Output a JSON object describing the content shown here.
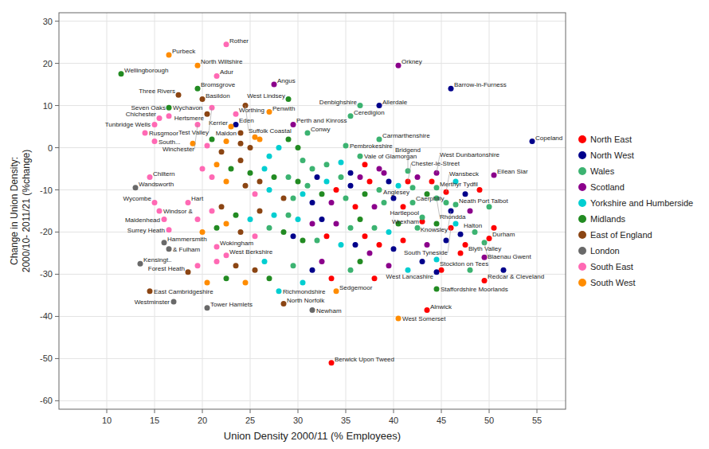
{
  "chart_data": {
    "type": "scatter",
    "xlabel": "Union Density 2000/11 (% Employees)",
    "ylabel": "Change in Union Density:\n2000/10- 2011/21 (%change)",
    "xlim": [
      5,
      58
    ],
    "ylim": [
      -62,
      32
    ],
    "xticks": [
      10,
      15,
      20,
      25,
      30,
      35,
      40,
      45,
      50,
      55
    ],
    "yticks": [
      -60,
      -50,
      -40,
      -30,
      -20,
      -10,
      0,
      10,
      20,
      30
    ],
    "grid": true,
    "legend": "right",
    "series": [
      {
        "name": "North East",
        "color": "#FF0000",
        "x": [
          37,
          34,
          36,
          37.5,
          41,
          44,
          49,
          33,
          37,
          38.5,
          41,
          47,
          50.5,
          33.5,
          38,
          45,
          41.5,
          45.5,
          43,
          46,
          50,
          47.5,
          49.5,
          43.5,
          33.5
        ],
        "values": [
          -4,
          -10,
          -14,
          -8,
          -14,
          -8,
          -10,
          -21,
          -21,
          -23,
          -22,
          -25,
          -19,
          -31,
          -31,
          -29,
          -8,
          -10.5,
          -17.5,
          -19,
          -21.5,
          -23,
          -31.5,
          -38.5,
          -51
        ],
        "labels": [
          null,
          null,
          null,
          null,
          null,
          null,
          null,
          null,
          null,
          null,
          null,
          null,
          null,
          null,
          null,
          null,
          "Chester-le-Street",
          "Wansbeck",
          "Hartlepool",
          "South Tyneside",
          "Durham",
          "Blyth Valley",
          "Redcar & Cleveland",
          "Alnwick",
          "Berwick Upon Tweed"
        ]
      },
      {
        "name": "North West",
        "color": "#00008B",
        "x": [
          35.5,
          31.5,
          32,
          35.5,
          39.5,
          40,
          47.5,
          29.5,
          32.5,
          36,
          40,
          45.5,
          31.5,
          43,
          51.5,
          23.5,
          38.5,
          46,
          54.5,
          46,
          47,
          44.5
        ],
        "values": [
          -6,
          -13,
          -7,
          -9,
          -8,
          -12,
          -11,
          -21,
          -17,
          -23,
          -24,
          -22,
          -29,
          -27,
          -29,
          5.5,
          10,
          14,
          1.5,
          -15,
          -20.5,
          -29.5
        ],
        "labels": [
          null,
          null,
          null,
          null,
          null,
          null,
          null,
          null,
          null,
          null,
          null,
          null,
          null,
          null,
          null,
          "Eden",
          "Allerdale",
          "Barrow-in-Furness",
          "Copeland",
          "Knowsley",
          "Halton",
          "West Lancashire"
        ]
      },
      {
        "name": "Wales",
        "color": "#3CB371",
        "x": [
          30.5,
          31.5,
          33,
          29,
          29.5,
          31,
          34.5,
          35,
          38.5,
          39,
          45.5,
          50,
          27,
          29,
          32,
          35.5,
          38,
          42.5,
          48.5,
          29.5,
          35.5,
          48,
          31,
          35,
          35.5,
          36.5,
          38.5,
          36.5,
          41.5,
          42,
          44.5,
          44.5,
          42,
          46.5,
          43,
          49.5
        ],
        "values": [
          -3,
          -5,
          -4,
          -7,
          -12,
          -9,
          -7,
          -12,
          -10,
          -13,
          -13,
          -14,
          -19,
          -16,
          -22,
          -19,
          -19,
          -19,
          -20,
          -28,
          -29,
          -29,
          3.5,
          0.5,
          7.5,
          10,
          2,
          -2,
          -5.5,
          -9.5,
          -9.5,
          -12,
          -13,
          -13.5,
          -16.5,
          -22.5
        ],
        "labels": [
          null,
          null,
          null,
          null,
          null,
          null,
          null,
          null,
          null,
          null,
          null,
          null,
          null,
          null,
          null,
          null,
          null,
          null,
          null,
          null,
          null,
          null,
          "Conwy",
          "Pembrokeshire",
          "Ceredigion",
          "Denbighshire",
          "Carmarthenshire",
          "Vale of Glamorgan",
          "Bridgend",
          "Anglesey",
          "Merthyr Tydfil",
          "Rhondda",
          "Caerphilly",
          "Neath Port Talbot",
          "Wrexham",
          "Blaenau Gwent"
        ]
      },
      {
        "name": "Scotland",
        "color": "#8B008B",
        "x": [
          38.5,
          39,
          33.5,
          36.5,
          38,
          42.5,
          48,
          31.5,
          34,
          37.5,
          43.5,
          49.5,
          32.5,
          39.5,
          27.5,
          29.5,
          40.5,
          44.5,
          50.5
        ],
        "values": [
          -5,
          -6,
          -13,
          -7,
          -14,
          -7,
          -15,
          -18,
          -18,
          -25,
          -23,
          -26,
          -27,
          -28,
          15,
          5.5,
          19.5,
          -6,
          -6.5
        ],
        "labels": [
          null,
          null,
          null,
          null,
          null,
          null,
          null,
          null,
          null,
          null,
          null,
          null,
          null,
          null,
          "Angus",
          "Perth and Kinross",
          "Orkney",
          "West Dunbartonshire",
          "Eilean Siar"
        ]
      },
      {
        "name": "Yorkshire and Humberside",
        "color": "#00CED1",
        "x": [
          27,
          28,
          34.5,
          26.5,
          27,
          30.5,
          33,
          40.5,
          46.5,
          25,
          27.5,
          30,
          34.5,
          39.5,
          46.5,
          26.5,
          30.5,
          41.5,
          44.5,
          28
        ],
        "values": [
          -2,
          0,
          -3.5,
          -5,
          -10,
          -11,
          -8,
          -9,
          -8,
          -17,
          -16,
          -17,
          -23,
          -20,
          -18,
          -27,
          -32,
          -29,
          -26.5,
          -34
        ],
        "labels": [
          null,
          null,
          null,
          null,
          null,
          null,
          null,
          null,
          null,
          null,
          null,
          null,
          null,
          null,
          null,
          null,
          null,
          null,
          "Stockton on Tees",
          "Richmondshire"
        ]
      },
      {
        "name": "Midlands",
        "color": "#228B22",
        "x": [
          21,
          29,
          30,
          23,
          25,
          27.5,
          30,
          32.5,
          37,
          43.5,
          21.5,
          23.5,
          28.5,
          30.5,
          36.5,
          40.5,
          44.5,
          22.5,
          27,
          36.5,
          11.5,
          19.5,
          16.5,
          29,
          44.5
        ],
        "values": [
          2,
          2,
          0,
          -5,
          -6,
          -7,
          -8,
          -11,
          -11,
          -11,
          -19,
          -16,
          -20,
          -22,
          -17,
          -18,
          -18,
          -31,
          -31,
          -27,
          17.5,
          14,
          9.5,
          11.5,
          -33.5
        ],
        "labels": [
          null,
          null,
          null,
          null,
          null,
          null,
          null,
          null,
          null,
          null,
          null,
          null,
          null,
          null,
          null,
          null,
          null,
          null,
          null,
          null,
          "Wellingborough",
          "Bromsgrove",
          "Wychavon",
          "West Lindsey",
          "Staffordshire Moorlands"
        ]
      },
      {
        "name": "East of England",
        "color": "#8B4513",
        "x": [
          22,
          24,
          25,
          24,
          24.5,
          26,
          28.5,
          22,
          24,
          26,
          23.5,
          25.5,
          17.5,
          20,
          24.5,
          20.5,
          24,
          18.5,
          14.5,
          28.5
        ],
        "values": [
          -1,
          1,
          0,
          -3,
          -9,
          -8,
          -12,
          -14,
          -20,
          -15,
          -28,
          -29,
          12.5,
          11.5,
          10,
          8,
          3.5,
          -29.5,
          -34,
          -37
        ],
        "labels": [
          null,
          null,
          null,
          null,
          null,
          null,
          null,
          null,
          null,
          null,
          null,
          null,
          "Three Rivers",
          "Basildon",
          "Suffolk Coastal",
          "Hertsmere",
          "Maldon",
          "Forest Heath",
          "East Cambridgeshire",
          "North Norfolk"
        ]
      },
      {
        "name": "London",
        "color": "#696969",
        "x": [
          13,
          16,
          16.5,
          13.5,
          17,
          20.5,
          31.5
        ],
        "values": [
          -9.5,
          -22.5,
          -24,
          -27.5,
          -36.5,
          -38,
          -38.5
        ],
        "labels": [
          "Wandsworth",
          "Hammersmith",
          "& Fulham",
          "Kensingt..",
          "Westminster",
          "Tower Hamlets",
          "Newham"
        ]
      },
      {
        "name": "South East",
        "color": "#FF69B4",
        "x": [
          20.5,
          20,
          21,
          25.5,
          19.5,
          21,
          25.5,
          19.5,
          21.5,
          22.5,
          21.5,
          21,
          23.5,
          16.5,
          15.5,
          15,
          19.5,
          14,
          15,
          14.5,
          15,
          18.5,
          15.5,
          16,
          16.5,
          21.5,
          22.5
        ],
        "values": [
          0.5,
          -5,
          -7,
          -11,
          -17,
          -15,
          -21,
          -28,
          -27,
          24.5,
          17,
          9.5,
          8,
          7.5,
          7,
          5.5,
          5.5,
          3.5,
          1.5,
          -7,
          -13,
          -13,
          -15,
          -17,
          -19.5,
          -23.5,
          -25.5
        ],
        "labels": [
          null,
          null,
          null,
          null,
          null,
          null,
          null,
          null,
          null,
          "Rother",
          "Adur",
          "Test Valley",
          "Worthing",
          "Seven Oaks",
          "Chichester",
          "Tunbridge Wells",
          "Winchester",
          "Rusgmoor",
          "South...",
          "Chiltern",
          "Wycombe",
          "Hart",
          "Windsor &",
          "Maidenhead",
          "Surrey Heath",
          "Wokingham",
          "West Berkshire"
        ]
      },
      {
        "name": "South West",
        "color": "#FF8C00",
        "x": [
          19,
          22.5,
          25.5,
          26,
          21.5,
          22.5,
          20,
          22.5,
          20.5,
          24.5,
          16.5,
          19.5,
          23,
          27,
          34,
          40.5
        ],
        "values": [
          1,
          1.5,
          2.5,
          2,
          -4,
          -8,
          -20,
          -18,
          -32,
          -32,
          22,
          19.5,
          5,
          8.5,
          -34,
          -40.5
        ],
        "labels": [
          null,
          null,
          null,
          null,
          null,
          null,
          null,
          null,
          null,
          null,
          "Purbeck",
          "North Wiltshire",
          "Kerrier",
          "Penwith",
          "Sedgemoor",
          "West Somerset"
        ]
      }
    ]
  }
}
